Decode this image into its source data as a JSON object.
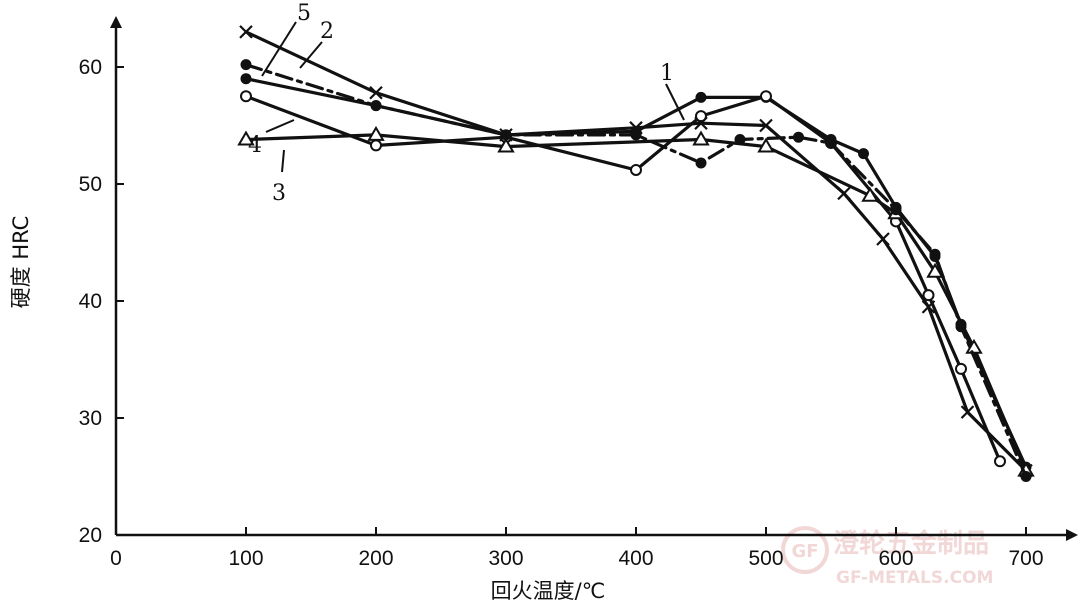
{
  "chart_data": {
    "type": "line",
    "title": "",
    "xlabel": "回火温度/℃",
    "ylabel": "硬度  HRC",
    "xlim": [
      0,
      720
    ],
    "ylim": [
      20,
      65
    ],
    "xticks": [
      0,
      100,
      200,
      300,
      400,
      500,
      600,
      700
    ],
    "yticks": [
      20,
      30,
      40,
      50,
      60
    ],
    "xtick_labels": [
      "0",
      "100",
      "200",
      "300",
      "400",
      "500",
      "600",
      "700"
    ],
    "ytick_labels": [
      "20",
      "30",
      "40",
      "50",
      "60"
    ],
    "grid": false,
    "legend": "none (curves numbered 1–5 by callout labels)",
    "series": [
      {
        "name": "1",
        "marker": "filled-circle",
        "line": "solid",
        "x": [
          100,
          200,
          300,
          400,
          450,
          500,
          550,
          575,
          600,
          630,
          650,
          700
        ],
        "y": [
          59,
          56.7,
          54.2,
          54.5,
          57.4,
          57.4,
          53.8,
          52.6,
          48,
          43.8,
          38,
          25.8
        ]
      },
      {
        "name": "2",
        "marker": "x",
        "line": "solid",
        "x": [
          100,
          200,
          300,
          400,
          450,
          500,
          560,
          590,
          625,
          655,
          700
        ],
        "y": [
          63,
          57.8,
          54.2,
          54.8,
          55.2,
          55,
          49.2,
          45.3,
          39.5,
          30.5,
          25.5
        ]
      },
      {
        "name": "3",
        "marker": "open-circle",
        "line": "solid",
        "x": [
          100,
          200,
          300,
          400,
          450,
          500,
          550,
          600,
          625,
          650,
          680
        ],
        "y": [
          57.5,
          53.3,
          54,
          51.2,
          55.8,
          57.5,
          53.5,
          46.8,
          40.5,
          34.2,
          26.3
        ]
      },
      {
        "name": "4",
        "marker": "triangle",
        "line": "solid",
        "x": [
          100,
          200,
          300,
          450,
          500,
          580,
          600,
          630,
          660,
          700
        ],
        "y": [
          53.8,
          54.2,
          53.2,
          53.8,
          53.2,
          49,
          47.5,
          42.5,
          36,
          25.5
        ]
      },
      {
        "name": "5",
        "marker": "filled-circle",
        "line": "dashed",
        "x": [
          100,
          200,
          300,
          400,
          450,
          480,
          525,
          550,
          600,
          630,
          650,
          700
        ],
        "y": [
          60.2,
          56.7,
          54.2,
          54.2,
          51.8,
          53.8,
          54,
          53.5,
          47.8,
          44,
          37.8,
          25
        ]
      }
    ]
  },
  "watermark": {
    "text_cn": "澄轮五金制品",
    "text_en": "GF-METALS.COM",
    "logo": "GF"
  }
}
